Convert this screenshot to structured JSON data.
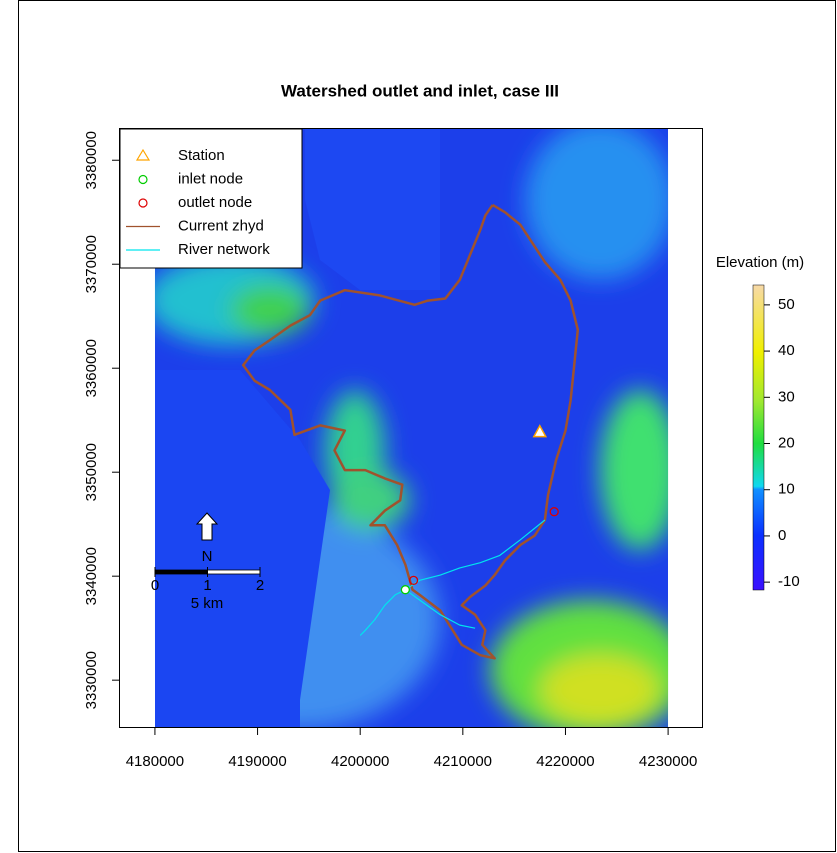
{
  "chart_data": {
    "type": "map",
    "title": "Watershed outlet and inlet, case III",
    "xlim": [
      4176500,
      4233400
    ],
    "ylim": [
      3325400,
      3383100
    ],
    "xticks": [
      4180000,
      4190000,
      4200000,
      4210000,
      4220000,
      4230000
    ],
    "yticks": [
      3330000,
      3340000,
      3350000,
      3360000,
      3370000,
      3380000
    ],
    "raster_extent": [
      4180000,
      4230000
    ],
    "series": [
      {
        "name": "Station",
        "color": "#ffa500",
        "marker": "triangle",
        "x": [
          4217500
        ],
        "y": [
          3353800
        ]
      },
      {
        "name": "inlet node",
        "color": "#00cc00",
        "marker": "circle",
        "x": [
          4204400
        ],
        "y": [
          3338700
        ]
      },
      {
        "name": "outlet node",
        "color": "#dd0000",
        "marker": "circle",
        "x": [
          4205200,
          4218900
        ],
        "y": [
          3339600,
          3346200
        ]
      },
      {
        "name": "Current zhyd",
        "color": "#a0522d",
        "marker": "line",
        "x": [
          4212900,
          4214100,
          4215600,
          4216600,
          4218000,
          4219500,
          4220500,
          4221200,
          4220800,
          4220500,
          4220000,
          4219100,
          4218300,
          4218000,
          4217000,
          4215600,
          4214100,
          4213100,
          4212200,
          4210700,
          4209900,
          4211200,
          4212200,
          4211900,
          4213100,
          4211700,
          4209900,
          4207800,
          4205800,
          4205100,
          4204400,
          4203600,
          4202400,
          4201000,
          4202400,
          4203900,
          4204100,
          4202400,
          4200500,
          4198500,
          4197500,
          4198500,
          4196100,
          4193600,
          4193200,
          4191200,
          4189700,
          4188600,
          4189700,
          4191200,
          4193200,
          4195100,
          4196100,
          4198500,
          4201900,
          4205300,
          4206600,
          4208300,
          4209700,
          4210700,
          4211700,
          4212200,
          4212900
        ],
        "y": [
          3375700,
          3375000,
          3373800,
          3372300,
          3370200,
          3368500,
          3366500,
          3363700,
          3359800,
          3356900,
          3354000,
          3351200,
          3347800,
          3345400,
          3343900,
          3343000,
          3341500,
          3340100,
          3339100,
          3338000,
          3337200,
          3336300,
          3334800,
          3333400,
          3332100,
          3332400,
          3333400,
          3336700,
          3338200,
          3338700,
          3341100,
          3343000,
          3344900,
          3344900,
          3346300,
          3347300,
          3348800,
          3349400,
          3350200,
          3350200,
          3352100,
          3354000,
          3354500,
          3353600,
          3356000,
          3357900,
          3358800,
          3360300,
          3361700,
          3362700,
          3364100,
          3365100,
          3366500,
          3367500,
          3367000,
          3366100,
          3366500,
          3366700,
          3368500,
          3370900,
          3373300,
          3374700,
          3375700
        ]
      },
      {
        "name": "River network",
        "color": "#00e5ee",
        "marker": "line",
        "x": [
          4218000,
          4215600,
          4213600,
          4211700,
          4209700,
          4207800,
          4205800,
          4204400,
          null,
          4204400,
          4203400,
          4202400,
          4201400,
          4200500,
          4200000,
          null,
          4204400,
          4205800,
          4207800,
          4209700,
          4211200
        ],
        "y": [
          3345400,
          3343500,
          3342000,
          3341300,
          3340800,
          3340100,
          3339600,
          3338700,
          null,
          3338700,
          3338200,
          3337200,
          3335800,
          3334800,
          3334300,
          null,
          3338700,
          3337700,
          3336300,
          3335300,
          3335000
        ]
      }
    ],
    "colorbar": {
      "title": "Elevation (m)",
      "clim": [
        -11.7,
        54.3
      ],
      "ticks": [
        -10,
        0,
        10,
        20,
        30,
        40,
        50
      ]
    },
    "scalebar": {
      "north": "N",
      "ticks": [
        0,
        1,
        2
      ],
      "label": "5 km"
    }
  }
}
